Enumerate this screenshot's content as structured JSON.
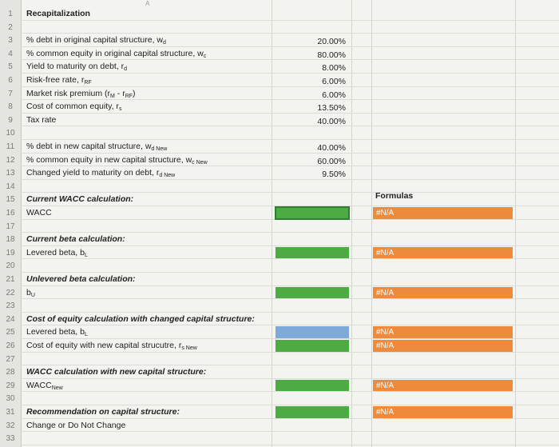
{
  "sheet": {
    "column_letter": "A",
    "rows": [
      {
        "n": "1",
        "label": "Recapitalization",
        "kind": "title"
      },
      {
        "n": "2",
        "label": ""
      },
      {
        "n": "3",
        "label": "% debt in original capital structure, w",
        "sub": "d",
        "value": "20.00%"
      },
      {
        "n": "4",
        "label": "% common equity in original capital structure, w",
        "sub": "c",
        "value": "80.00%"
      },
      {
        "n": "5",
        "label": "Yield to maturity on debt, r",
        "sub": "d",
        "value": "8.00%"
      },
      {
        "n": "6",
        "label": "Risk-free rate, r",
        "sub": "RF",
        "value": "6.00%"
      },
      {
        "n": "7",
        "label": "Market risk premium (r",
        "sub": "M",
        "label2": " - r",
        "sub2": "RF",
        "label3": ")",
        "value": "6.00%"
      },
      {
        "n": "8",
        "label": "Cost of common equity, r",
        "sub": "s",
        "value": "13.50%"
      },
      {
        "n": "9",
        "label": "Tax rate",
        "value": "40.00%"
      },
      {
        "n": "10",
        "label": ""
      },
      {
        "n": "11",
        "label": "% debt in new capital structure, w",
        "sub": "d New",
        "value": "40.00%"
      },
      {
        "n": "12",
        "label": "% common equity in new capital structure, w",
        "sub": "c New",
        "value": "60.00%"
      },
      {
        "n": "13",
        "label": "Changed yield to maturity on debt, r",
        "sub": "d New",
        "value": "9.50%"
      },
      {
        "n": "14",
        "label": ""
      },
      {
        "n": "15",
        "label": "Current WACC calculation:",
        "kind": "head"
      },
      {
        "n": "16",
        "label": "WACC"
      },
      {
        "n": "17",
        "label": ""
      },
      {
        "n": "18",
        "label": "Current beta calculation:",
        "kind": "head"
      },
      {
        "n": "19",
        "label": "Levered beta, b",
        "sub": "L"
      },
      {
        "n": "20",
        "label": ""
      },
      {
        "n": "21",
        "label": "Unlevered beta calculation:",
        "kind": "head"
      },
      {
        "n": "22",
        "label": "b",
        "sub": "U"
      },
      {
        "n": "23",
        "label": ""
      },
      {
        "n": "24",
        "label": "Cost of equity calculation with changed capital structure:",
        "kind": "head"
      },
      {
        "n": "25",
        "label": "Levered beta, b",
        "sub": "L"
      },
      {
        "n": "26",
        "label": "Cost of equity with new capital strucutre, r",
        "sub": "s New"
      },
      {
        "n": "27",
        "label": ""
      },
      {
        "n": "28",
        "label": "WACC calculation with new capital structure:",
        "kind": "head"
      },
      {
        "n": "29",
        "label": "WACC",
        "sub": "New"
      },
      {
        "n": "30",
        "label": ""
      },
      {
        "n": "31",
        "label": "Recommendation on capital structure:",
        "kind": "head"
      },
      {
        "n": "32",
        "label": "Change or Do Not Change"
      },
      {
        "n": "33",
        "label": ""
      }
    ],
    "formulas_header": "Formulas",
    "na_text": "#N/A",
    "na_rows": [
      "16",
      "19",
      "22",
      "25",
      "26",
      "29",
      "31"
    ],
    "green_rows": [
      "16",
      "19",
      "22",
      "26",
      "29",
      "31"
    ],
    "blue_rows": [
      "25"
    ],
    "colors": {
      "green": "#4dab44",
      "blue": "#7fa9d8",
      "orange": "#ef8a3a"
    }
  }
}
